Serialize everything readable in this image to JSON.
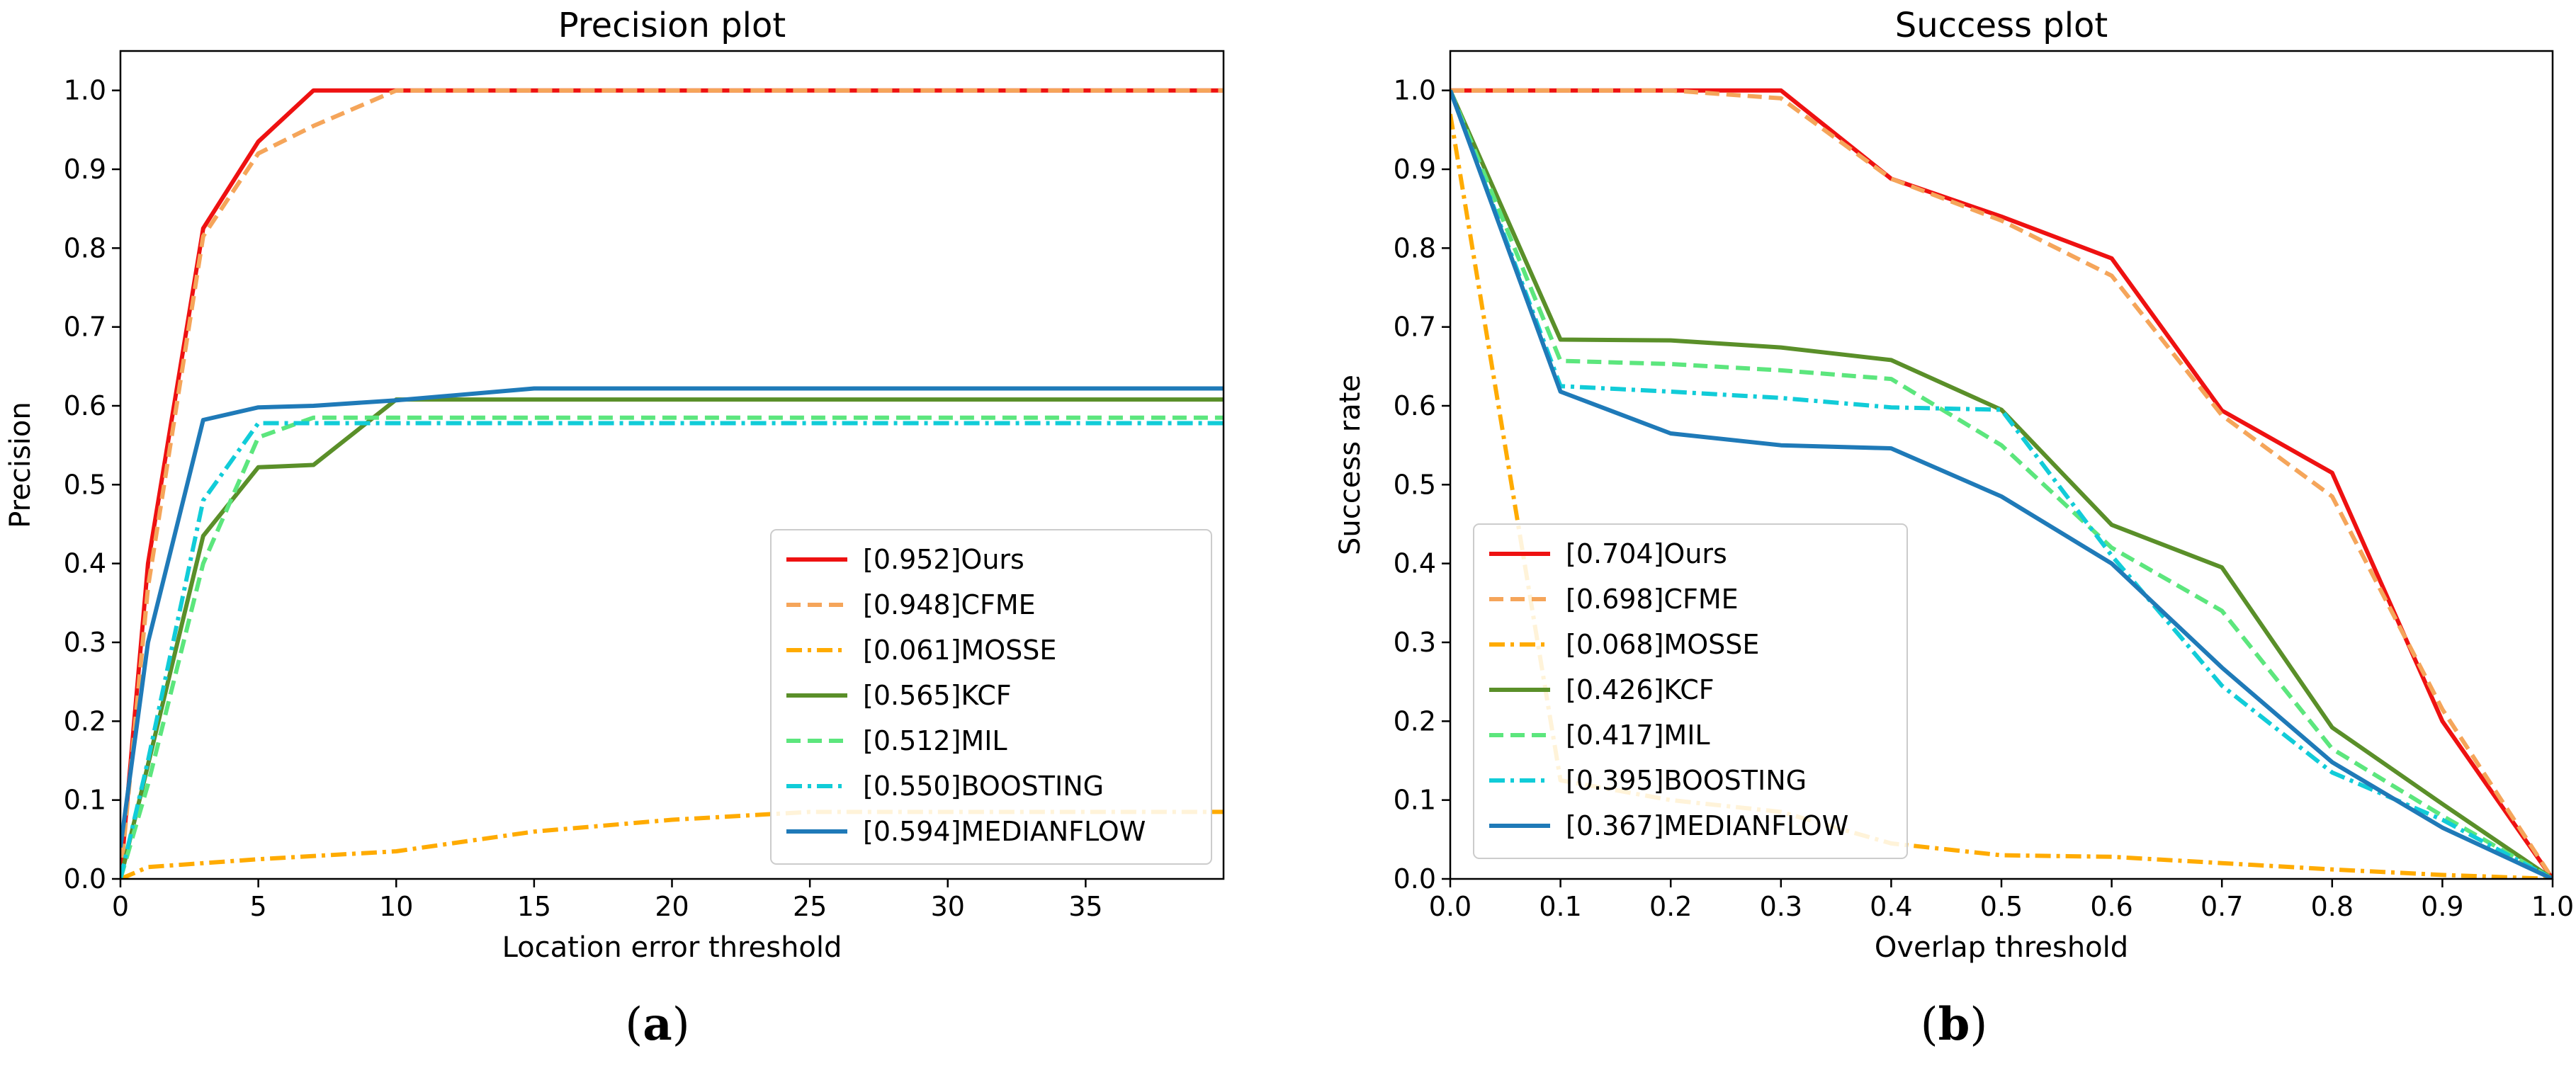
{
  "chart_data": [
    {
      "type": "line",
      "title": "Precision plot",
      "xlabel": "Location error threshold",
      "ylabel": "Precision",
      "xlim": [
        0,
        40
      ],
      "ylim": [
        0,
        1.05
      ],
      "xticks": [
        "0",
        "5",
        "10",
        "15",
        "20",
        "25",
        "30",
        "35"
      ],
      "xtick_values": [
        0,
        5,
        10,
        15,
        20,
        25,
        30,
        35
      ],
      "yticks": [
        "0.0",
        "0.1",
        "0.2",
        "0.3",
        "0.4",
        "0.5",
        "0.6",
        "0.7",
        "0.8",
        "0.9",
        "1.0"
      ],
      "ytick_values": [
        0,
        0.1,
        0.2,
        0.3,
        0.4,
        0.5,
        0.6,
        0.7,
        0.8,
        0.9,
        1.0
      ],
      "legend_position": "lower-right",
      "caption": "a",
      "series": [
        {
          "name": "[0.952]Ours",
          "color": "#ee1111",
          "style": "solid",
          "points": [
            [
              0,
              0
            ],
            [
              1,
              0.4
            ],
            [
              3,
              0.825
            ],
            [
              5,
              0.935
            ],
            [
              7,
              1.0
            ],
            [
              10,
              1.0
            ],
            [
              15,
              1.0
            ],
            [
              20,
              1.0
            ],
            [
              25,
              1.0
            ],
            [
              30,
              1.0
            ],
            [
              35,
              1.0
            ],
            [
              40,
              1.0
            ]
          ]
        },
        {
          "name": "[0.948]CFME",
          "color": "#f5a55a",
          "style": "dashed",
          "points": [
            [
              0,
              0
            ],
            [
              1,
              0.37
            ],
            [
              3,
              0.815
            ],
            [
              5,
              0.92
            ],
            [
              7,
              0.955
            ],
            [
              10,
              1.0
            ],
            [
              15,
              1.0
            ],
            [
              20,
              1.0
            ],
            [
              25,
              1.0
            ],
            [
              30,
              1.0
            ],
            [
              35,
              1.0
            ],
            [
              40,
              1.0
            ]
          ]
        },
        {
          "name": "[0.061]MOSSE",
          "color": "#ffab00",
          "style": "dashdot",
          "points": [
            [
              0,
              0
            ],
            [
              1,
              0.015
            ],
            [
              5,
              0.025
            ],
            [
              10,
              0.035
            ],
            [
              15,
              0.06
            ],
            [
              20,
              0.075
            ],
            [
              25,
              0.085
            ],
            [
              30,
              0.085
            ],
            [
              35,
              0.085
            ],
            [
              40,
              0.085
            ]
          ]
        },
        {
          "name": "[0.565]KCF",
          "color": "#5a8f29",
          "style": "solid",
          "points": [
            [
              0,
              0
            ],
            [
              3,
              0.435
            ],
            [
              5,
              0.522
            ],
            [
              7,
              0.525
            ],
            [
              10,
              0.608
            ],
            [
              15,
              0.608
            ],
            [
              20,
              0.608
            ],
            [
              25,
              0.608
            ],
            [
              30,
              0.608
            ],
            [
              35,
              0.608
            ],
            [
              40,
              0.608
            ]
          ]
        },
        {
          "name": "[0.512]MIL",
          "color": "#5ce67d",
          "style": "dashed",
          "points": [
            [
              0,
              0
            ],
            [
              1,
              0.12
            ],
            [
              3,
              0.4
            ],
            [
              5,
              0.56
            ],
            [
              7,
              0.585
            ],
            [
              10,
              0.585
            ],
            [
              15,
              0.585
            ],
            [
              20,
              0.585
            ],
            [
              25,
              0.585
            ],
            [
              30,
              0.585
            ],
            [
              35,
              0.585
            ],
            [
              40,
              0.585
            ]
          ]
        },
        {
          "name": "[0.550]BOOSTING",
          "color": "#11ccd8",
          "style": "dashdot",
          "points": [
            [
              0,
              0
            ],
            [
              1,
              0.15
            ],
            [
              3,
              0.48
            ],
            [
              5,
              0.578
            ],
            [
              7,
              0.578
            ],
            [
              10,
              0.578
            ],
            [
              15,
              0.578
            ],
            [
              20,
              0.578
            ],
            [
              25,
              0.578
            ],
            [
              30,
              0.578
            ],
            [
              35,
              0.578
            ],
            [
              40,
              0.578
            ]
          ]
        },
        {
          "name": "[0.594]MEDIANFLOW",
          "color": "#1f7ab8",
          "style": "solid",
          "points": [
            [
              0,
              0.04
            ],
            [
              1,
              0.3
            ],
            [
              3,
              0.582
            ],
            [
              5,
              0.598
            ],
            [
              7,
              0.6
            ],
            [
              10,
              0.607
            ],
            [
              15,
              0.622
            ],
            [
              20,
              0.622
            ],
            [
              25,
              0.622
            ],
            [
              30,
              0.622
            ],
            [
              35,
              0.622
            ],
            [
              40,
              0.622
            ]
          ]
        }
      ]
    },
    {
      "type": "line",
      "title": "Success plot",
      "xlabel": "Overlap threshold",
      "ylabel": "Success rate",
      "xlim": [
        0,
        1
      ],
      "ylim": [
        0,
        1.05
      ],
      "xticks": [
        "0.0",
        "0.1",
        "0.2",
        "0.3",
        "0.4",
        "0.5",
        "0.6",
        "0.7",
        "0.8",
        "0.9",
        "1.0"
      ],
      "xtick_values": [
        0,
        0.1,
        0.2,
        0.3,
        0.4,
        0.5,
        0.6,
        0.7,
        0.8,
        0.9,
        1.0
      ],
      "yticks": [
        "0.0",
        "0.1",
        "0.2",
        "0.3",
        "0.4",
        "0.5",
        "0.6",
        "0.7",
        "0.8",
        "0.9",
        "1.0"
      ],
      "ytick_values": [
        0,
        0.1,
        0.2,
        0.3,
        0.4,
        0.5,
        0.6,
        0.7,
        0.8,
        0.9,
        1.0
      ],
      "legend_position": "lower-left",
      "caption": "b",
      "series": [
        {
          "name": "[0.704]Ours",
          "color": "#ee1111",
          "style": "solid",
          "points": [
            [
              0,
              1.0
            ],
            [
              0.1,
              1.0
            ],
            [
              0.2,
              1.0
            ],
            [
              0.3,
              1.0
            ],
            [
              0.4,
              0.888
            ],
            [
              0.5,
              0.84
            ],
            [
              0.6,
              0.787
            ],
            [
              0.7,
              0.594
            ],
            [
              0.8,
              0.515
            ],
            [
              0.9,
              0.2
            ],
            [
              1.0,
              0.0
            ]
          ]
        },
        {
          "name": "[0.698]CFME",
          "color": "#f5a55a",
          "style": "dashed",
          "points": [
            [
              0,
              1.0
            ],
            [
              0.1,
              1.0
            ],
            [
              0.2,
              1.0
            ],
            [
              0.3,
              0.99
            ],
            [
              0.4,
              0.888
            ],
            [
              0.5,
              0.835
            ],
            [
              0.6,
              0.765
            ],
            [
              0.7,
              0.588
            ],
            [
              0.8,
              0.485
            ],
            [
              0.9,
              0.215
            ],
            [
              1.0,
              0.0
            ]
          ]
        },
        {
          "name": "[0.068]MOSSE",
          "color": "#ffab00",
          "style": "dashdot",
          "points": [
            [
              0,
              0.97
            ],
            [
              0.1,
              0.125
            ],
            [
              0.2,
              0.1
            ],
            [
              0.3,
              0.085
            ],
            [
              0.4,
              0.045
            ],
            [
              0.5,
              0.03
            ],
            [
              0.6,
              0.028
            ],
            [
              0.7,
              0.02
            ],
            [
              0.8,
              0.012
            ],
            [
              0.9,
              0.005
            ],
            [
              1.0,
              0.0
            ]
          ]
        },
        {
          "name": "[0.426]KCF",
          "color": "#5a8f29",
          "style": "solid",
          "points": [
            [
              0,
              1.0
            ],
            [
              0.1,
              0.684
            ],
            [
              0.2,
              0.683
            ],
            [
              0.3,
              0.674
            ],
            [
              0.4,
              0.658
            ],
            [
              0.5,
              0.595
            ],
            [
              0.6,
              0.449
            ],
            [
              0.7,
              0.395
            ],
            [
              0.8,
              0.192
            ],
            [
              0.9,
              0.095
            ],
            [
              1.0,
              0.0
            ]
          ]
        },
        {
          "name": "[0.417]MIL",
          "color": "#5ce67d",
          "style": "dashed",
          "points": [
            [
              0,
              1.0
            ],
            [
              0.1,
              0.657
            ],
            [
              0.2,
              0.653
            ],
            [
              0.3,
              0.645
            ],
            [
              0.4,
              0.634
            ],
            [
              0.5,
              0.55
            ],
            [
              0.6,
              0.42
            ],
            [
              0.7,
              0.34
            ],
            [
              0.8,
              0.165
            ],
            [
              0.9,
              0.08
            ],
            [
              1.0,
              0.0
            ]
          ]
        },
        {
          "name": "[0.395]BOOSTING",
          "color": "#11ccd8",
          "style": "dashdot",
          "points": [
            [
              0,
              1.0
            ],
            [
              0.1,
              0.625
            ],
            [
              0.2,
              0.618
            ],
            [
              0.3,
              0.61
            ],
            [
              0.4,
              0.598
            ],
            [
              0.5,
              0.595
            ],
            [
              0.6,
              0.41
            ],
            [
              0.7,
              0.245
            ],
            [
              0.8,
              0.135
            ],
            [
              0.9,
              0.075
            ],
            [
              1.0,
              0.0
            ]
          ]
        },
        {
          "name": "[0.367]MEDIANFLOW",
          "color": "#1f7ab8",
          "style": "solid",
          "points": [
            [
              0,
              1.0
            ],
            [
              0.1,
              0.618
            ],
            [
              0.2,
              0.565
            ],
            [
              0.3,
              0.55
            ],
            [
              0.4,
              0.546
            ],
            [
              0.5,
              0.485
            ],
            [
              0.6,
              0.4
            ],
            [
              0.7,
              0.268
            ],
            [
              0.8,
              0.148
            ],
            [
              0.9,
              0.065
            ],
            [
              1.0,
              0.0
            ]
          ]
        }
      ]
    }
  ]
}
